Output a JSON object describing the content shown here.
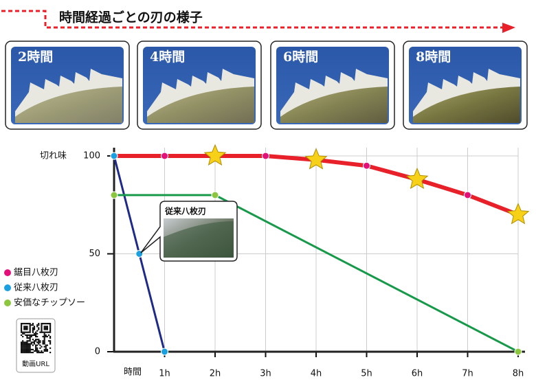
{
  "header": {
    "title": "時間経過ごとの刃の様子"
  },
  "panels": [
    {
      "label": "2時間"
    },
    {
      "label": "4時間"
    },
    {
      "label": "6時間"
    },
    {
      "label": "8時間"
    }
  ],
  "chart_data": {
    "type": "line",
    "y_label": "切れ味",
    "x_label": "時間",
    "xlim": [
      0,
      8
    ],
    "ylim": [
      0,
      100
    ],
    "xticks": [
      {
        "value": 1,
        "label": "1h"
      },
      {
        "value": 2,
        "label": "2h"
      },
      {
        "value": 3,
        "label": "3h"
      },
      {
        "value": 4,
        "label": "4h"
      },
      {
        "value": 5,
        "label": "5h"
      },
      {
        "value": 6,
        "label": "6h"
      },
      {
        "value": 7,
        "label": "7h"
      },
      {
        "value": 8,
        "label": "8h"
      }
    ],
    "yticks": [
      0,
      50,
      100
    ],
    "grid": true,
    "series": [
      {
        "name": "鋸目八枚刃",
        "color": "#e8202a",
        "marker_color": "#e4107a",
        "x": [
          0,
          1,
          2,
          3,
          4,
          5,
          6,
          7,
          8
        ],
        "values": [
          100,
          100,
          100,
          100,
          98,
          95,
          88,
          80,
          70
        ],
        "markers": [
          "circle",
          "circle",
          "star",
          "circle",
          "star",
          "circle",
          "star",
          "circle",
          "star"
        ]
      },
      {
        "name": "従来八枚刃",
        "color": "#1e2a8a",
        "marker_color": "#1aa0e0",
        "x": [
          0,
          0.5,
          1
        ],
        "values": [
          100,
          50,
          0
        ],
        "markers": [
          "circle",
          "circle",
          "circle"
        ]
      },
      {
        "name": "安価なチップソー",
        "color": "#17994a",
        "marker_color": "#8cc63f",
        "x": [
          0,
          2,
          8
        ],
        "values": [
          80,
          80,
          0
        ],
        "markers": [
          "circle",
          "circle",
          "circle"
        ]
      }
    ]
  },
  "callout": {
    "label": "従来八枚刃"
  },
  "qr": {
    "label": "動画URL"
  }
}
